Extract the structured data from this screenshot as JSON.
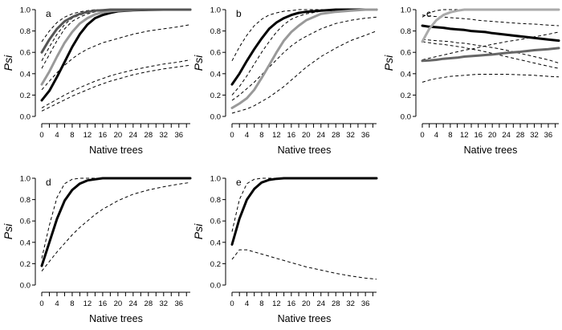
{
  "chart_data": [
    {
      "panel": "a",
      "type": "line",
      "xlabel": "Native trees",
      "ylabel": "Psi",
      "xlim": [
        0,
        39
      ],
      "ylim": [
        0,
        1
      ],
      "xticks": [
        0,
        4,
        8,
        12,
        16,
        20,
        24,
        28,
        32,
        36
      ],
      "xtick_labels": [
        "0",
        "4",
        "8",
        "12",
        "16",
        "20",
        "24",
        "28",
        "32",
        "36"
      ],
      "yticks": [
        0,
        0.2,
        0.4,
        0.6,
        0.8,
        1.0
      ],
      "ytick_labels": [
        "0.0",
        "0.2",
        "0.4",
        "0.6",
        "0.8",
        "1.0"
      ],
      "x": [
        0,
        2,
        4,
        6,
        8,
        10,
        12,
        14,
        16,
        18,
        20,
        24,
        28,
        32,
        36,
        39
      ],
      "series": [
        {
          "name": "black-estimate",
          "color": "#000000",
          "style": "thick",
          "values": [
            0.15,
            0.24,
            0.37,
            0.51,
            0.65,
            0.77,
            0.86,
            0.92,
            0.95,
            0.97,
            0.985,
            0.995,
            0.998,
            1.0,
            1.0,
            1.0
          ]
        },
        {
          "name": "gray-estimate",
          "color": "#999999",
          "style": "thick",
          "values": [
            0.3,
            0.42,
            0.56,
            0.69,
            0.79,
            0.87,
            0.92,
            0.955,
            0.975,
            0.985,
            0.99,
            0.997,
            1.0,
            1.0,
            1.0,
            1.0
          ]
        },
        {
          "name": "dark-gray-estimate",
          "color": "#555555",
          "style": "thick",
          "values": [
            0.6,
            0.72,
            0.82,
            0.89,
            0.93,
            0.96,
            0.98,
            0.99,
            0.995,
            1.0,
            1.0,
            1.0,
            1.0,
            1.0,
            1.0,
            1.0
          ]
        },
        {
          "name": "ci-dark-upper",
          "color": "#000000",
          "style": "dashed",
          "values": [
            0.7,
            0.8,
            0.88,
            0.93,
            0.96,
            0.98,
            0.99,
            1.0,
            1.0,
            1.0,
            1.0,
            1.0,
            1.0,
            1.0,
            1.0,
            1.0
          ]
        },
        {
          "name": "ci-dark-lower",
          "color": "#000000",
          "style": "dashed",
          "values": [
            0.45,
            0.58,
            0.71,
            0.82,
            0.89,
            0.93,
            0.96,
            0.98,
            0.99,
            0.995,
            1.0,
            1.0,
            1.0,
            1.0,
            1.0,
            1.0
          ]
        },
        {
          "name": "ci-black-upper",
          "color": "#000000",
          "style": "dashed",
          "values": [
            0.52,
            0.65,
            0.77,
            0.86,
            0.92,
            0.95,
            0.97,
            0.985,
            0.99,
            0.995,
            1.0,
            1.0,
            1.0,
            1.0,
            1.0,
            1.0
          ]
        },
        {
          "name": "ci-gray-lower",
          "color": "#000000",
          "style": "dashed",
          "values": [
            0.25,
            0.33,
            0.41,
            0.48,
            0.54,
            0.59,
            0.63,
            0.66,
            0.69,
            0.71,
            0.73,
            0.77,
            0.8,
            0.82,
            0.84,
            0.86
          ]
        },
        {
          "name": "ci-black-lower-1",
          "color": "#000000",
          "style": "dashed",
          "values": [
            0.08,
            0.12,
            0.16,
            0.2,
            0.235,
            0.27,
            0.3,
            0.33,
            0.355,
            0.38,
            0.4,
            0.435,
            0.465,
            0.49,
            0.51,
            0.53
          ]
        },
        {
          "name": "ci-black-lower-2",
          "color": "#000000",
          "style": "dashed",
          "values": [
            0.05,
            0.085,
            0.12,
            0.155,
            0.19,
            0.22,
            0.25,
            0.28,
            0.305,
            0.33,
            0.35,
            0.39,
            0.42,
            0.445,
            0.465,
            0.48
          ]
        }
      ]
    },
    {
      "panel": "b",
      "type": "line",
      "xlabel": "Native trees",
      "ylabel": "Psi",
      "xlim": [
        0,
        39
      ],
      "ylim": [
        0,
        1
      ],
      "xticks": [
        0,
        4,
        8,
        12,
        16,
        20,
        24,
        28,
        32,
        36
      ],
      "xtick_labels": [
        "0",
        "4",
        "8",
        "12",
        "16",
        "20",
        "24",
        "28",
        "32",
        "36"
      ],
      "yticks": [
        0,
        0.2,
        0.4,
        0.6,
        0.8,
        1.0
      ],
      "ytick_labels": [
        "0.0",
        "0.2",
        "0.4",
        "0.6",
        "0.8",
        "1.0"
      ],
      "x": [
        0,
        2,
        4,
        6,
        8,
        10,
        12,
        14,
        16,
        18,
        20,
        24,
        28,
        32,
        36,
        39
      ],
      "series": [
        {
          "name": "black-estimate",
          "color": "#000000",
          "style": "thick",
          "values": [
            0.3,
            0.4,
            0.52,
            0.63,
            0.73,
            0.82,
            0.88,
            0.92,
            0.95,
            0.97,
            0.98,
            0.99,
            1.0,
            1.0,
            1.0,
            1.0
          ]
        },
        {
          "name": "gray-estimate",
          "color": "#999999",
          "style": "thick",
          "values": [
            0.08,
            0.12,
            0.17,
            0.25,
            0.36,
            0.48,
            0.6,
            0.71,
            0.79,
            0.85,
            0.9,
            0.96,
            0.98,
            0.99,
            1.0,
            1.0
          ]
        },
        {
          "name": "ci-upper-1",
          "color": "#000000",
          "style": "dashed",
          "values": [
            0.52,
            0.65,
            0.76,
            0.85,
            0.91,
            0.95,
            0.97,
            0.985,
            0.99,
            1.0,
            1.0,
            1.0,
            1.0,
            1.0,
            1.0,
            1.0
          ]
        },
        {
          "name": "ci-upper-2",
          "color": "#000000",
          "style": "dashed",
          "values": [
            0.2,
            0.28,
            0.38,
            0.49,
            0.6,
            0.7,
            0.79,
            0.86,
            0.91,
            0.94,
            0.96,
            0.985,
            0.995,
            1.0,
            1.0,
            1.0
          ]
        },
        {
          "name": "ci-lower-1",
          "color": "#000000",
          "style": "dashed",
          "values": [
            0.15,
            0.2,
            0.26,
            0.32,
            0.39,
            0.46,
            0.53,
            0.6,
            0.66,
            0.71,
            0.75,
            0.82,
            0.87,
            0.9,
            0.92,
            0.93
          ]
        },
        {
          "name": "ci-lower-2",
          "color": "#000000",
          "style": "dashed",
          "values": [
            0.03,
            0.05,
            0.07,
            0.1,
            0.14,
            0.18,
            0.23,
            0.28,
            0.34,
            0.4,
            0.46,
            0.56,
            0.64,
            0.71,
            0.76,
            0.8
          ]
        }
      ]
    },
    {
      "panel": "c",
      "type": "line",
      "xlabel": "Native trees",
      "ylabel": "Psi",
      "xlim": [
        0,
        39
      ],
      "ylim": [
        0,
        1
      ],
      "xticks": [
        0,
        4,
        8,
        12,
        16,
        20,
        24,
        28,
        32,
        36
      ],
      "xtick_labels": [
        "0",
        "4",
        "8",
        "12",
        "16",
        "20",
        "24",
        "28",
        "32",
        "36"
      ],
      "yticks": [
        0,
        0.2,
        0.4,
        0.6,
        0.8,
        1.0
      ],
      "ytick_labels": [
        "0.0",
        "0.2",
        "0.4",
        "0.6",
        "0.8",
        "1.0"
      ],
      "x": [
        0,
        2,
        4,
        6,
        8,
        10,
        12,
        14,
        16,
        18,
        20,
        24,
        28,
        32,
        36,
        39
      ],
      "series": [
        {
          "name": "black-estimate",
          "color": "#000000",
          "style": "thick",
          "values": [
            0.85,
            0.84,
            0.835,
            0.83,
            0.82,
            0.815,
            0.81,
            0.8,
            0.795,
            0.79,
            0.78,
            0.765,
            0.75,
            0.735,
            0.72,
            0.71
          ]
        },
        {
          "name": "light-gray-estimate",
          "color": "#aaaaaa",
          "style": "thick",
          "values": [
            0.7,
            0.82,
            0.9,
            0.95,
            0.975,
            0.99,
            1.0,
            1.0,
            1.0,
            1.0,
            1.0,
            1.0,
            1.0,
            1.0,
            1.0,
            1.0
          ]
        },
        {
          "name": "dark-gray-estimate",
          "color": "#666666",
          "style": "thick",
          "values": [
            0.52,
            0.525,
            0.53,
            0.54,
            0.545,
            0.55,
            0.56,
            0.565,
            0.57,
            0.575,
            0.58,
            0.595,
            0.605,
            0.62,
            0.63,
            0.64
          ]
        },
        {
          "name": "ci-upper-1",
          "color": "#000000",
          "style": "dashed",
          "values": [
            0.93,
            0.97,
            0.99,
            1.0,
            1.0,
            1.0,
            1.0,
            1.0,
            1.0,
            1.0,
            1.0,
            1.0,
            1.0,
            1.0,
            1.0,
            1.0
          ]
        },
        {
          "name": "ci-upper-2",
          "color": "#000000",
          "style": "dashed",
          "values": [
            0.95,
            0.94,
            0.935,
            0.93,
            0.925,
            0.92,
            0.915,
            0.91,
            0.9,
            0.895,
            0.89,
            0.88,
            0.87,
            0.865,
            0.855,
            0.85
          ]
        },
        {
          "name": "ci-mid-1",
          "color": "#000000",
          "style": "dashed",
          "values": [
            0.72,
            0.715,
            0.71,
            0.705,
            0.7,
            0.69,
            0.685,
            0.675,
            0.665,
            0.655,
            0.645,
            0.62,
            0.59,
            0.56,
            0.53,
            0.5
          ]
        },
        {
          "name": "ci-mid-2",
          "color": "#000000",
          "style": "dashed",
          "values": [
            0.7,
            0.69,
            0.68,
            0.675,
            0.665,
            0.655,
            0.645,
            0.63,
            0.62,
            0.605,
            0.59,
            0.56,
            0.53,
            0.5,
            0.47,
            0.45
          ]
        },
        {
          "name": "ci-mid-3",
          "color": "#000000",
          "style": "dashed",
          "values": [
            0.53,
            0.545,
            0.56,
            0.575,
            0.59,
            0.605,
            0.62,
            0.63,
            0.645,
            0.66,
            0.675,
            0.7,
            0.72,
            0.745,
            0.77,
            0.79
          ]
        },
        {
          "name": "ci-lower",
          "color": "#000000",
          "style": "dashed",
          "values": [
            0.32,
            0.34,
            0.355,
            0.365,
            0.375,
            0.38,
            0.385,
            0.39,
            0.395,
            0.395,
            0.395,
            0.395,
            0.39,
            0.385,
            0.375,
            0.37
          ]
        }
      ]
    },
    {
      "panel": "d",
      "type": "line",
      "xlabel": "Native trees",
      "ylabel": "Psi",
      "xlim": [
        0,
        39
      ],
      "ylim": [
        0,
        1
      ],
      "xticks": [
        0,
        4,
        8,
        12,
        16,
        20,
        24,
        28,
        32,
        36
      ],
      "xtick_labels": [
        "0",
        "4",
        "8",
        "12",
        "16",
        "20",
        "24",
        "28",
        "32",
        "36"
      ],
      "yticks": [
        0,
        0.2,
        0.4,
        0.6,
        0.8,
        1.0
      ],
      "ytick_labels": [
        "0.0",
        "0.2",
        "0.4",
        "0.6",
        "0.8",
        "1.0"
      ],
      "x": [
        0,
        2,
        4,
        6,
        8,
        10,
        12,
        14,
        16,
        18,
        20,
        24,
        28,
        32,
        36,
        39
      ],
      "series": [
        {
          "name": "black-estimate",
          "color": "#000000",
          "style": "thick",
          "values": [
            0.18,
            0.4,
            0.62,
            0.79,
            0.89,
            0.95,
            0.98,
            0.99,
            1.0,
            1.0,
            1.0,
            1.0,
            1.0,
            1.0,
            1.0,
            1.0
          ]
        },
        {
          "name": "ci-upper",
          "color": "#000000",
          "style": "dashed",
          "values": [
            0.25,
            0.56,
            0.82,
            0.95,
            0.99,
            1.0,
            1.0,
            1.0,
            1.0,
            1.0,
            1.0,
            1.0,
            1.0,
            1.0,
            1.0,
            1.0
          ]
        },
        {
          "name": "ci-lower",
          "color": "#000000",
          "style": "dashed",
          "values": [
            0.13,
            0.22,
            0.31,
            0.39,
            0.47,
            0.54,
            0.6,
            0.66,
            0.71,
            0.75,
            0.79,
            0.85,
            0.89,
            0.92,
            0.945,
            0.96
          ]
        }
      ]
    },
    {
      "panel": "e",
      "type": "line",
      "xlabel": "Native trees",
      "ylabel": "Psi",
      "xlim": [
        0,
        39
      ],
      "ylim": [
        0,
        1
      ],
      "xticks": [
        0,
        4,
        8,
        12,
        16,
        20,
        24,
        28,
        32,
        36
      ],
      "xtick_labels": [
        "0",
        "4",
        "8",
        "12",
        "16",
        "20",
        "24",
        "28",
        "32",
        "36"
      ],
      "yticks": [
        0,
        0.2,
        0.4,
        0.6,
        0.8,
        1.0
      ],
      "ytick_labels": [
        "0.0",
        "0.2",
        "0.4",
        "0.6",
        "0.8",
        "1.0"
      ],
      "x": [
        0,
        2,
        4,
        6,
        8,
        10,
        12,
        14,
        16,
        18,
        20,
        24,
        28,
        32,
        36,
        39
      ],
      "series": [
        {
          "name": "black-estimate",
          "color": "#000000",
          "style": "thick",
          "values": [
            0.38,
            0.62,
            0.8,
            0.9,
            0.96,
            0.985,
            0.995,
            1.0,
            1.0,
            1.0,
            1.0,
            1.0,
            1.0,
            1.0,
            1.0,
            1.0
          ]
        },
        {
          "name": "ci-upper",
          "color": "#000000",
          "style": "dashed",
          "values": [
            0.5,
            0.8,
            0.95,
            0.99,
            1.0,
            1.0,
            1.0,
            1.0,
            1.0,
            1.0,
            1.0,
            1.0,
            1.0,
            1.0,
            1.0,
            1.0
          ]
        },
        {
          "name": "ci-lower",
          "color": "#000000",
          "style": "dashed",
          "values": [
            0.24,
            0.33,
            0.33,
            0.31,
            0.29,
            0.27,
            0.25,
            0.23,
            0.21,
            0.19,
            0.17,
            0.14,
            0.11,
            0.085,
            0.065,
            0.055
          ]
        }
      ]
    }
  ]
}
